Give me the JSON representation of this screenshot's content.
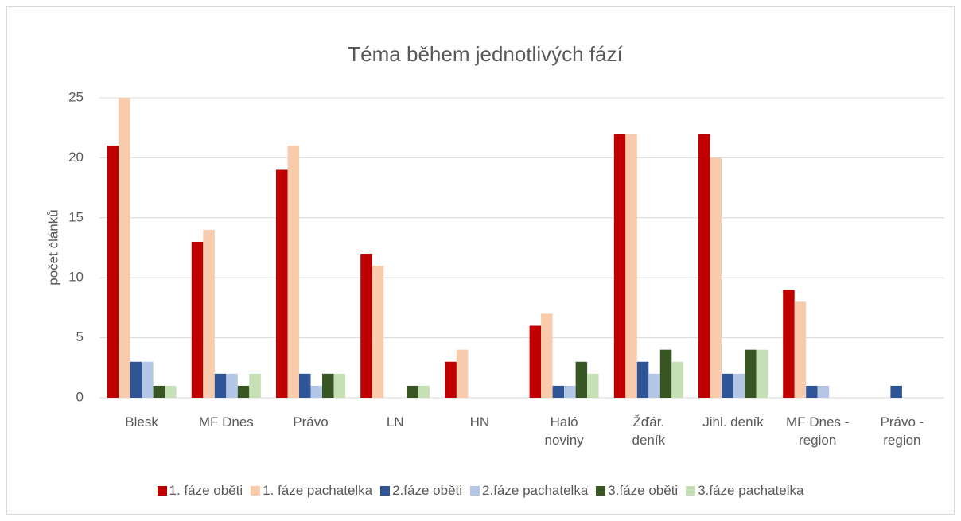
{
  "chart_data": {
    "type": "bar",
    "title": "Téma během jednotlivých fází",
    "y_label": "počet článků",
    "categories": [
      "Blesk",
      "MF Dnes",
      "Právo",
      "LN",
      "HN",
      "Haló noviny",
      "Žďár. deník",
      "Jihl. deník",
      "MF Dnes - region",
      "Právo - region"
    ],
    "series": [
      {
        "name": "1. fáze oběti",
        "color": "#c00000",
        "values": [
          21,
          13,
          19,
          12,
          3,
          6,
          22,
          22,
          9,
          0
        ]
      },
      {
        "name": "1. fáze pachatelka",
        "color": "#f8cbad",
        "values": [
          25,
          14,
          21,
          11,
          4,
          7,
          22,
          20,
          8,
          0
        ]
      },
      {
        "name": "2.fáze oběti",
        "color": "#2f5597",
        "values": [
          3,
          2,
          2,
          0,
          0,
          1,
          3,
          2,
          1,
          1
        ]
      },
      {
        "name": "2.fáze pachatelka",
        "color": "#b4c7e7",
        "values": [
          3,
          2,
          1,
          0,
          0,
          1,
          2,
          2,
          1,
          0
        ]
      },
      {
        "name": "3.fáze oběti",
        "color": "#375623",
        "values": [
          1,
          1,
          2,
          1,
          0,
          3,
          4,
          4,
          0,
          0
        ]
      },
      {
        "name": "3.fáze pachatelka",
        "color": "#c5e0b4",
        "values": [
          1,
          2,
          2,
          1,
          0,
          2,
          3,
          4,
          0,
          0
        ]
      }
    ],
    "ylim": [
      0,
      25
    ],
    "yticks": [
      0,
      5,
      10,
      15,
      20,
      25
    ],
    "grid": true,
    "legend": "bottom"
  }
}
